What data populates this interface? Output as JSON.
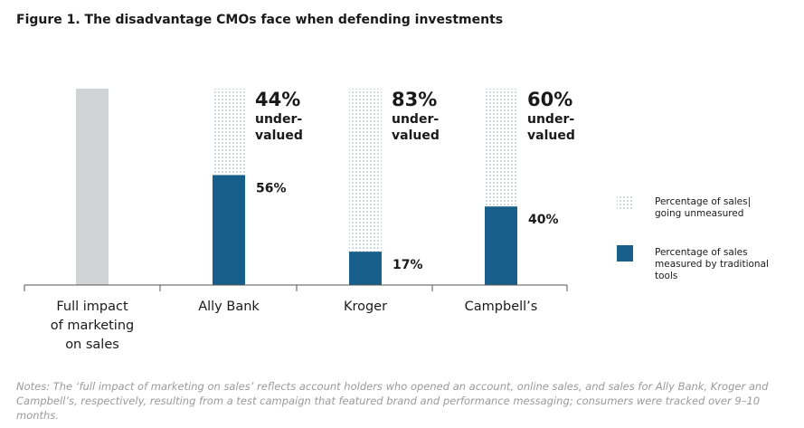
{
  "title": "Figure 1.  The disadvantage CMOs face when defending investments",
  "notes": "Notes: The ‘full impact of marketing on sales’ reflects account holders who opened an account, online sales, and sales for Ally Bank, Kroger and Campbell’s, respectively, resulting from a test campaign that featured brand and performance messaging; consumers were tracked over 9–10 months.",
  "colors": {
    "measured": "#175f8a",
    "full": "#d1d3d4",
    "dots": "#8fa8bb"
  },
  "legend": [
    {
      "key": "unmeasured",
      "lines": [
        "Percentage of sales|",
        "going unmeasured"
      ]
    },
    {
      "key": "measured",
      "lines": [
        "Percentage of sales",
        "measured by traditional",
        "tools"
      ]
    }
  ],
  "chart_data": {
    "type": "bar",
    "stacked": true,
    "categories": [
      {
        "label_lines": [
          "Full impact",
          "of marketing",
          "on sales"
        ]
      },
      {
        "label_lines": [
          "Ally Bank"
        ]
      },
      {
        "label_lines": [
          "Kroger"
        ]
      },
      {
        "label_lines": [
          "Campbell’s"
        ]
      }
    ],
    "ylim": [
      0,
      100
    ],
    "series": [
      {
        "name": "Full impact of marketing on sales",
        "key": "full",
        "values": [
          100,
          0,
          0,
          0
        ]
      },
      {
        "name": "Percentage of sales measured by traditional tools",
        "key": "measured",
        "values": [
          0,
          56,
          17,
          40
        ],
        "labels": [
          "",
          "56%",
          "17%",
          "40%"
        ]
      },
      {
        "name": "Percentage of sales going unmeasured",
        "key": "unmeasured",
        "values": [
          0,
          44,
          83,
          60
        ]
      }
    ],
    "annotations": [
      null,
      {
        "pct": "44%",
        "line1": "under-",
        "line2": "valued"
      },
      {
        "pct": "83%",
        "line1": "under-",
        "line2": "valued"
      },
      {
        "pct": "60%",
        "line1": "under-",
        "line2": "valued"
      }
    ]
  }
}
